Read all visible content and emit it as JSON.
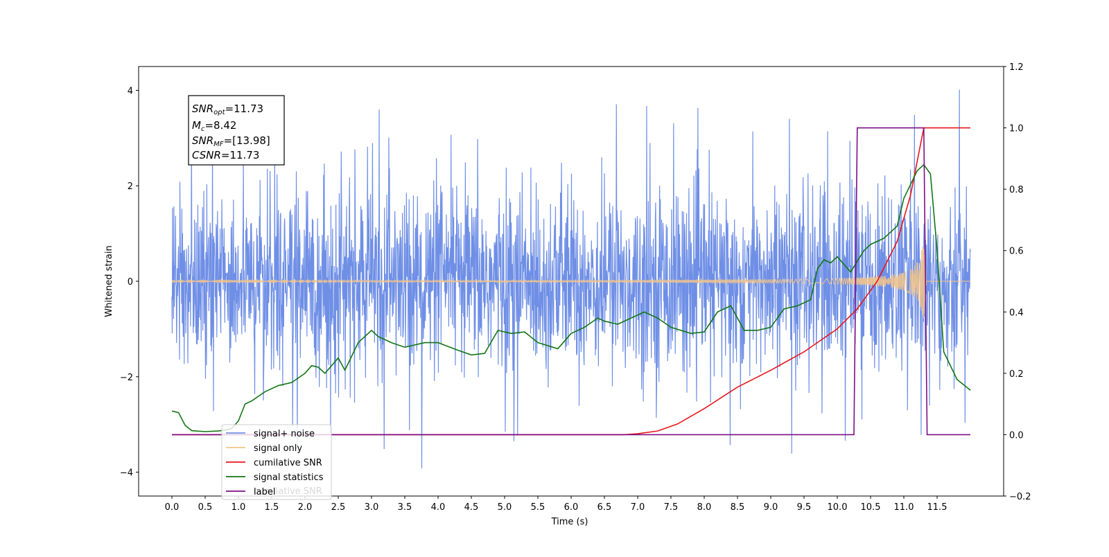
{
  "chart_data": {
    "type": "line",
    "xlabel": "Time (s)",
    "ylabel": "Whitened strain",
    "xlim": [
      -0.5,
      12.5
    ],
    "ylim": [
      -4.5,
      4.5
    ],
    "ylim_right": [
      -0.2,
      1.2
    ],
    "x_ticks": [
      "0.0",
      "0.5",
      "1.0",
      "1.5",
      "2.0",
      "2.5",
      "3.0",
      "3.5",
      "4.0",
      "4.5",
      "5.0",
      "5.5",
      "6.0",
      "6.5",
      "7.0",
      "7.5",
      "8.0",
      "8.5",
      "9.0",
      "9.5",
      "10.0",
      "10.5",
      "11.0",
      "11.5"
    ],
    "y_ticks_left": [
      "4",
      "2",
      "0",
      "−2",
      "−4"
    ],
    "y_ticks_right": [
      "1.2",
      "1.0",
      "0.8",
      "0.6",
      "0.4",
      "0.2",
      "0.0",
      "−0.2"
    ],
    "annotation": {
      "snr_opt": {
        "label": "SNR",
        "sub": "opt",
        "value": "=11.73"
      },
      "mc": {
        "label": "M",
        "sub": "c",
        "value": "=8.42"
      },
      "snr_mf": {
        "label": "SNR",
        "sub": "MF",
        "value": "=[13.98]"
      },
      "csnr": {
        "label": "CSNR",
        "sub": "",
        "value": "=11.73"
      }
    },
    "legend_placement": "lower-left",
    "series": [
      {
        "name": "signal+ noise",
        "color": "#6f8fe6",
        "axis": "left",
        "kind": "noise",
        "x_range": [
          0.0,
          12.0
        ],
        "amplitude_typical": 2.0,
        "amplitude_peak": 4.1
      },
      {
        "name": "signal only",
        "color": "#f5c68a",
        "axis": "left",
        "kind": "chirp",
        "x_range": [
          0.0,
          12.0
        ],
        "merger_time": 11.3,
        "peak_amplitude": 1.0
      },
      {
        "name": "cumilative SNR",
        "color": "#e8141a",
        "axis": "right",
        "x": [
          0.0,
          6.8,
          7.0,
          7.3,
          7.6,
          8.0,
          8.5,
          9.0,
          9.5,
          10.0,
          10.3,
          10.6,
          10.9,
          11.1,
          11.3,
          11.35,
          12.0
        ],
        "y": [
          0.0,
          0.0,
          0.003,
          0.012,
          0.035,
          0.085,
          0.155,
          0.21,
          0.27,
          0.345,
          0.41,
          0.5,
          0.63,
          0.78,
          1.0,
          1.0,
          1.0
        ]
      },
      {
        "name": "signal statistics",
        "color": "#127512",
        "axis": "right",
        "x": [
          0.0,
          0.1,
          0.2,
          0.3,
          0.5,
          0.7,
          0.8,
          0.9,
          1.0,
          1.1,
          1.2,
          1.4,
          1.6,
          1.8,
          2.0,
          2.1,
          2.2,
          2.3,
          2.5,
          2.6,
          2.8,
          2.9,
          3.0,
          3.1,
          3.3,
          3.5,
          3.6,
          3.8,
          4.0,
          4.3,
          4.5,
          4.7,
          4.9,
          5.1,
          5.3,
          5.5,
          5.8,
          6.0,
          6.2,
          6.4,
          6.5,
          6.7,
          6.9,
          7.1,
          7.3,
          7.5,
          7.8,
          8.0,
          8.2,
          8.4,
          8.6,
          8.8,
          9.0,
          9.2,
          9.4,
          9.6,
          9.7,
          9.8,
          9.9,
          10.0,
          10.2,
          10.4,
          10.5,
          10.7,
          10.9,
          11.0,
          11.2,
          11.3,
          11.4,
          11.5,
          11.6,
          11.8,
          12.0
        ],
        "y": [
          0.077,
          0.072,
          0.03,
          0.013,
          0.01,
          0.012,
          0.015,
          0.02,
          0.045,
          0.1,
          0.11,
          0.14,
          0.16,
          0.17,
          0.2,
          0.225,
          0.22,
          0.2,
          0.25,
          0.21,
          0.3,
          0.32,
          0.34,
          0.32,
          0.3,
          0.285,
          0.29,
          0.3,
          0.3,
          0.275,
          0.26,
          0.265,
          0.34,
          0.33,
          0.335,
          0.3,
          0.28,
          0.33,
          0.35,
          0.38,
          0.37,
          0.36,
          0.38,
          0.4,
          0.38,
          0.35,
          0.33,
          0.335,
          0.4,
          0.42,
          0.34,
          0.34,
          0.35,
          0.41,
          0.42,
          0.44,
          0.54,
          0.57,
          0.56,
          0.58,
          0.53,
          0.6,
          0.62,
          0.64,
          0.68,
          0.77,
          0.86,
          0.88,
          0.85,
          0.6,
          0.27,
          0.18,
          0.145
        ]
      },
      {
        "name": "label",
        "color": "#7b0e86",
        "axis": "right",
        "x": [
          0.0,
          10.25,
          10.3,
          11.3,
          11.35,
          12.0
        ],
        "y": [
          0.0,
          0.0,
          1.0,
          1.0,
          0.0,
          0.0
        ]
      }
    ],
    "legend_ghost_text": "cumilative SNR"
  }
}
